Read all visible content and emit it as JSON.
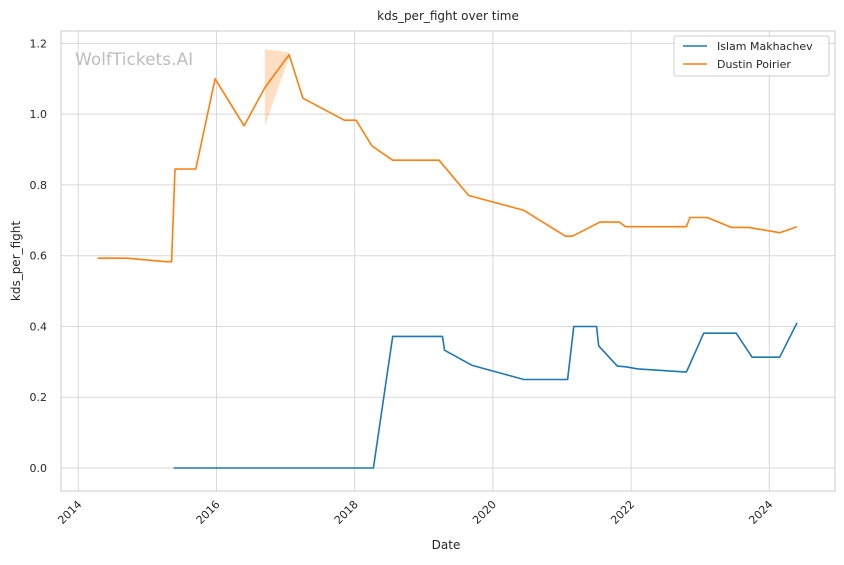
{
  "chart_data": {
    "type": "line",
    "title": "kds_per_fight over time",
    "xlabel": "Date",
    "ylabel": "kds_per_fight",
    "watermark": "WolfTickets.AI",
    "xlim": [
      2013.75,
      2024.95
    ],
    "ylim": [
      -0.065,
      1.235
    ],
    "xticks": [
      2014,
      2016,
      2018,
      2020,
      2022,
      2024
    ],
    "xtick_labels": [
      "2014",
      "2016",
      "2018",
      "2020",
      "2022",
      "2024"
    ],
    "yticks": [
      0.0,
      0.2,
      0.4,
      0.6,
      0.8,
      1.0,
      1.2
    ],
    "ytick_labels": [
      "0.0",
      "0.2",
      "0.4",
      "0.6",
      "0.8",
      "1.0",
      "1.2"
    ],
    "grid": true,
    "legend": "top-right",
    "series": [
      {
        "name": "Islam Makhachev",
        "color": "#1f77b4",
        "x": [
          2015.38,
          2018.27,
          2018.55,
          2019.27,
          2019.3,
          2019.7,
          2020.45,
          2021.08,
          2021.17,
          2021.5,
          2021.53,
          2021.8,
          2021.92,
          2022.1,
          2022.8,
          2023.05,
          2023.52,
          2023.75,
          2024.15,
          2024.4
        ],
        "y": [
          0.0,
          0.0,
          0.372,
          0.372,
          0.333,
          0.29,
          0.25,
          0.25,
          0.4,
          0.4,
          0.345,
          0.288,
          0.286,
          0.28,
          0.271,
          0.381,
          0.381,
          0.313,
          0.313,
          0.41
        ]
      },
      {
        "name": "Dustin Poirier",
        "color": "#ff7f0e",
        "x": [
          2014.28,
          2014.7,
          2015.27,
          2015.35,
          2015.4,
          2015.7,
          2015.98,
          2016.4,
          2016.7,
          2017.05,
          2017.25,
          2017.85,
          2018.02,
          2018.25,
          2018.55,
          2019.22,
          2019.65,
          2020.45,
          2021.05,
          2021.15,
          2021.55,
          2021.83,
          2021.92,
          2022.8,
          2022.85,
          2023.1,
          2023.45,
          2023.7,
          2024.15,
          2024.4
        ],
        "y": [
          0.593,
          0.593,
          0.583,
          0.583,
          0.845,
          0.845,
          1.1,
          0.967,
          1.075,
          1.168,
          1.045,
          0.983,
          0.983,
          0.91,
          0.87,
          0.87,
          0.77,
          0.728,
          0.655,
          0.655,
          0.695,
          0.695,
          0.682,
          0.682,
          0.708,
          0.708,
          0.68,
          0.68,
          0.665,
          0.682
        ]
      }
    ],
    "confidence_band": {
      "series": "Dustin Poirier",
      "x": [
        2016.7,
        2017.05
      ],
      "upper": [
        1.183,
        1.175
      ],
      "lower": [
        0.967,
        1.16
      ]
    }
  }
}
